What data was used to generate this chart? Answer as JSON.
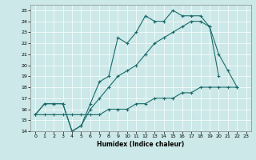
{
  "xlabel": "Humidex (Indice chaleur)",
  "xlim": [
    -0.5,
    23.5
  ],
  "ylim": [
    14,
    25.5
  ],
  "xticks": [
    0,
    1,
    2,
    3,
    4,
    5,
    6,
    7,
    8,
    9,
    10,
    11,
    12,
    13,
    14,
    15,
    16,
    17,
    18,
    19,
    20,
    21,
    22,
    23
  ],
  "yticks": [
    14,
    15,
    16,
    17,
    18,
    19,
    20,
    21,
    22,
    23,
    24,
    25
  ],
  "bg_color": "#cce8e8",
  "line_color": "#1a6b6b",
  "line1_x": [
    0,
    1,
    2,
    3,
    4,
    5,
    6,
    7,
    8,
    9,
    10,
    11,
    12,
    13,
    14,
    15,
    16,
    17,
    18,
    19,
    20
  ],
  "line1_y": [
    15.5,
    16.5,
    16.5,
    16.5,
    14.0,
    14.5,
    16.5,
    18.5,
    19.0,
    22.5,
    22.0,
    23.0,
    24.5,
    24.0,
    24.0,
    25.0,
    24.5,
    24.5,
    24.5,
    23.5,
    19.0
  ],
  "line2_x": [
    0,
    1,
    2,
    3,
    4,
    5,
    6,
    7,
    8,
    9,
    10,
    11,
    12,
    13,
    14,
    15,
    16,
    17,
    18,
    19,
    20,
    21,
    22
  ],
  "line2_y": [
    15.5,
    16.5,
    16.5,
    16.5,
    14.0,
    14.5,
    16.0,
    17.0,
    18.0,
    19.0,
    19.5,
    20.0,
    21.0,
    22.0,
    22.5,
    23.0,
    23.5,
    24.0,
    24.0,
    23.5,
    21.0,
    19.5,
    18.0
  ],
  "line3_x": [
    0,
    1,
    2,
    3,
    4,
    5,
    6,
    7,
    8,
    9,
    10,
    11,
    12,
    13,
    14,
    15,
    16,
    17,
    18,
    19,
    20,
    21,
    22
  ],
  "line3_y": [
    15.5,
    15.5,
    15.5,
    15.5,
    15.5,
    15.5,
    15.5,
    15.5,
    16.0,
    16.0,
    16.0,
    16.5,
    16.5,
    17.0,
    17.0,
    17.0,
    17.5,
    17.5,
    18.0,
    18.0,
    18.0,
    18.0,
    18.0
  ]
}
